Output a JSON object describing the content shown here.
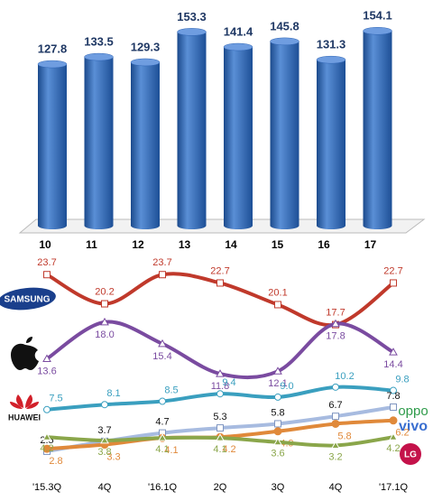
{
  "chart_data": [
    {
      "type": "bar",
      "categories": [
        "10",
        "11",
        "12",
        "13",
        "14",
        "15",
        "16",
        "17"
      ],
      "values": [
        127.8,
        133.5,
        129.3,
        153.3,
        141.4,
        145.8,
        131.3,
        154.1
      ],
      "color": "#2e64b4",
      "ylim": [
        0,
        160
      ]
    },
    {
      "type": "line",
      "categories": [
        "'15.3Q",
        "4Q",
        "'16.1Q",
        "2Q",
        "3Q",
        "4Q",
        "'17.1Q"
      ],
      "ylim": [
        0,
        26
      ],
      "series": [
        {
          "name": "SAMSUNG",
          "color": "#c0392b",
          "values": [
            23.7,
            20.2,
            23.7,
            22.7,
            20.1,
            17.7,
            22.7
          ]
        },
        {
          "color": "#7a4ba0",
          "values": [
            13.6,
            18.0,
            15.4,
            11.8,
            12.1,
            17.8,
            14.4
          ],
          "value_labels": [
            "13.6",
            "18.0",
            "15.4",
            "11.8",
            "12.1",
            "17.8",
            "14.4"
          ]
        },
        {
          "name": "HUAWEI",
          "color": "#3a9fbf",
          "values": [
            7.5,
            8.1,
            8.5,
            9.4,
            9.0,
            10.2,
            9.8
          ],
          "value_labels": [
            "7.5",
            "8.1",
            "8.5",
            "9.4",
            "9.0",
            "10.2",
            "9.8"
          ]
        },
        {
          "name": "oppo",
          "color": "#a7bbe0",
          "values": [
            2.5,
            3.7,
            4.7,
            5.3,
            5.8,
            6.7,
            7.8
          ]
        },
        {
          "name": "vivo",
          "color": "#e0893a",
          "values": [
            2.8,
            3.3,
            4.1,
            4.2,
            4.9,
            5.8,
            6.2
          ]
        },
        {
          "name": "LG",
          "color": "#8aa64a",
          "values": [
            4.2,
            3.8,
            4.1,
            4.1,
            3.6,
            3.2,
            4.2
          ]
        }
      ]
    }
  ]
}
